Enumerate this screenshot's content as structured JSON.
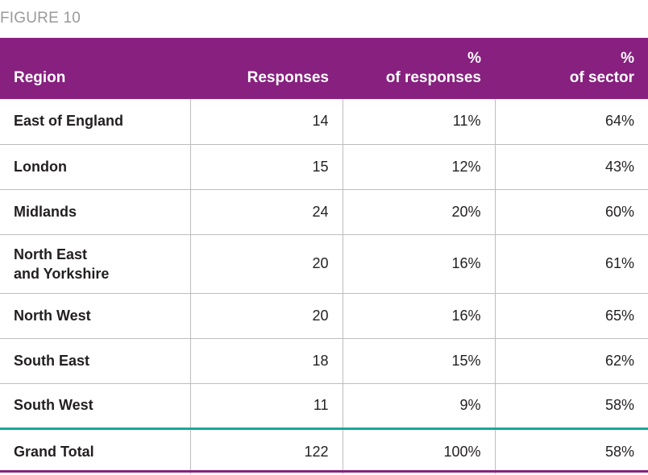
{
  "figure_label": "FIGURE 10",
  "headers": {
    "region": "Region",
    "responses": "Responses",
    "pct_responses_top": "%",
    "pct_responses_bottom": "of responses",
    "pct_sector_top": "%",
    "pct_sector_bottom": "of sector"
  },
  "rows": [
    {
      "region": "East of England",
      "responses": "14",
      "pct_responses": "11%",
      "pct_sector": "64%"
    },
    {
      "region": "London",
      "responses": "15",
      "pct_responses": "12%",
      "pct_sector": "43%"
    },
    {
      "region": "Midlands",
      "responses": "24",
      "pct_responses": "20%",
      "pct_sector": "60%"
    },
    {
      "region_line1": "North East",
      "region_line2": "and Yorkshire",
      "responses": "20",
      "pct_responses": "16%",
      "pct_sector": "61%"
    },
    {
      "region": "North West",
      "responses": "20",
      "pct_responses": "16%",
      "pct_sector": "65%"
    },
    {
      "region": "South East",
      "responses": "18",
      "pct_responses": "15%",
      "pct_sector": "62%"
    },
    {
      "region": "South West",
      "responses": "11",
      "pct_responses": "9%",
      "pct_sector": "58%"
    }
  ],
  "total": {
    "region": "Grand Total",
    "responses": "122",
    "pct_responses": "100%",
    "pct_sector": "58%"
  },
  "colors": {
    "header_bg": "#87207f",
    "total_rule": "#1aa59a",
    "label_grey": "#9a9a9a"
  }
}
